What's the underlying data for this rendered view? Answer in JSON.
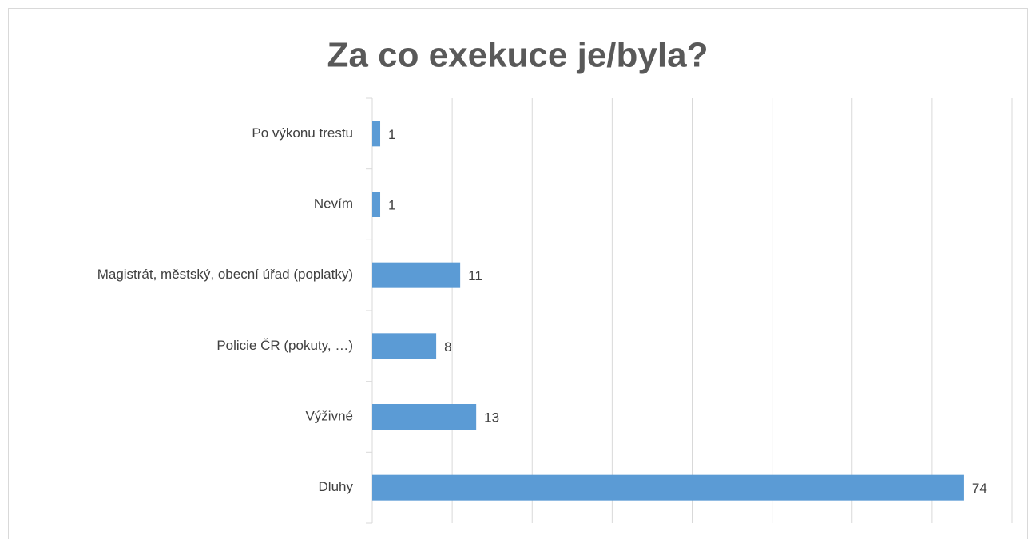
{
  "chart_data": {
    "type": "barh",
    "title": "Za co exekuce je/byla?",
    "categories": [
      "Po výkonu trestu",
      "Nevím",
      "Magistrát, městský, obecní úřad (poplatky)",
      "Policie ČR (pokuty, …)",
      "Výživné",
      "Dluhy"
    ],
    "values": [
      1,
      1,
      11,
      8,
      13,
      74
    ],
    "color": "#5b9bd5",
    "xlim": [
      0,
      80
    ],
    "xticks": [
      0,
      10,
      20,
      30,
      40,
      50,
      60,
      70,
      80
    ],
    "grid": true
  }
}
